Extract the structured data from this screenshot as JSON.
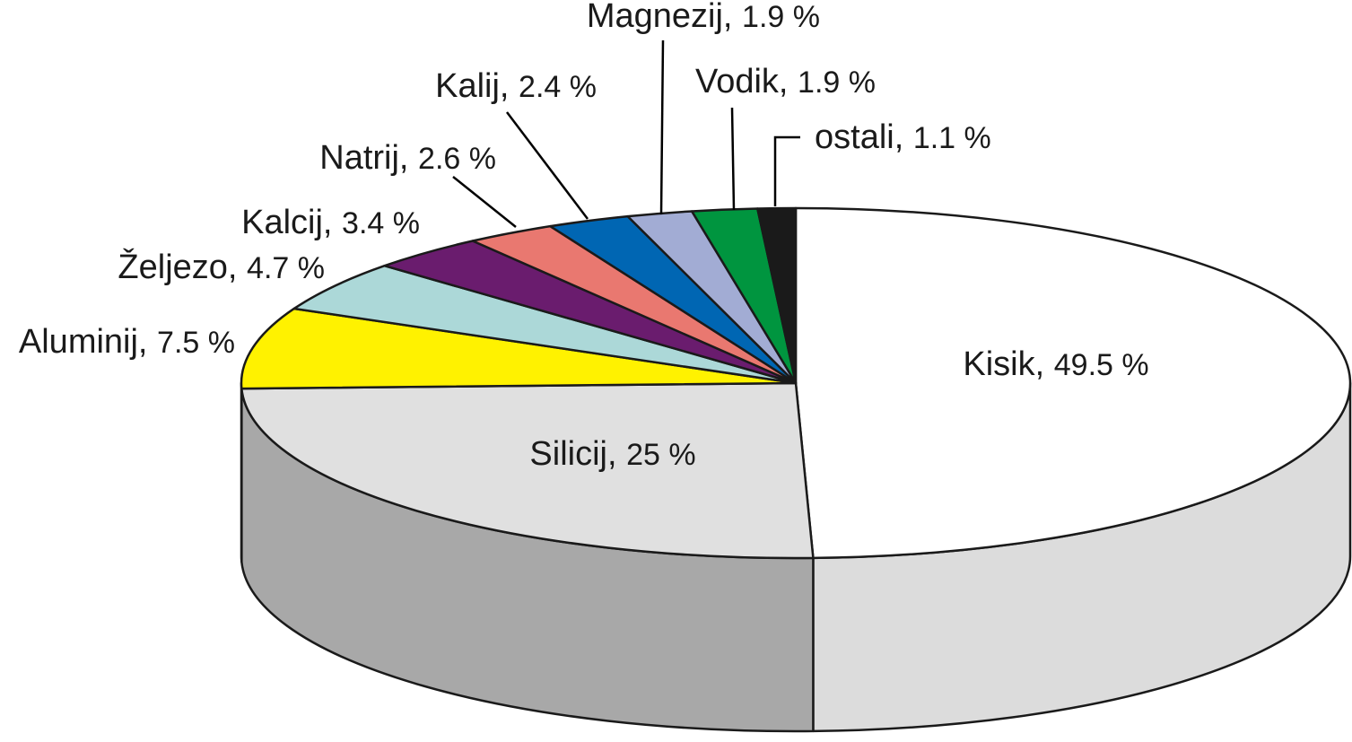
{
  "chart_data": {
    "type": "pie",
    "three_d": true,
    "start_angle_deg": 90,
    "direction": "clockwise",
    "slices": [
      {
        "name": "Kisik",
        "value": 49.5,
        "label": "Kisik, ",
        "pct": "49.5 %",
        "color": "#ffffff",
        "side_color": "#dcdcdc"
      },
      {
        "name": "Silicij",
        "value": 25,
        "label": "Silicij, ",
        "pct": "25 %",
        "color": "#e0e0e0",
        "side_color": "#a8a8a8"
      },
      {
        "name": "Aluminij",
        "value": 7.5,
        "label": "Aluminij, ",
        "pct": "7.5 %",
        "color": "#fff200",
        "side_color": "#a8a8a8"
      },
      {
        "name": "Željezo",
        "value": 4.7,
        "label": "Željezo, ",
        "pct": "4.7 %",
        "color": "#acd8d8",
        "side_color": "#a8a8a8"
      },
      {
        "name": "Kalcij",
        "value": 3.4,
        "label": "Kalcij, ",
        "pct": "3.4 %",
        "color": "#6a1c6e",
        "side_color": "#a8a8a8"
      },
      {
        "name": "Natrij",
        "value": 2.6,
        "label": "Natrij, ",
        "pct": "2.6 %",
        "color": "#e97870",
        "side_color": "#a8a8a8"
      },
      {
        "name": "Kalij",
        "value": 2.4,
        "label": "Kalij, ",
        "pct": "2.4 %",
        "color": "#0066b3",
        "side_color": "#a8a8a8"
      },
      {
        "name": "Magnezij",
        "value": 1.9,
        "label": "Magnezij, ",
        "pct": "1.9 %",
        "color": "#a2acd4",
        "side_color": "#a8a8a8"
      },
      {
        "name": "Vodik",
        "value": 1.9,
        "label": "Vodik, ",
        "pct": "1.9 %",
        "color": "#00953f",
        "side_color": "#a8a8a8"
      },
      {
        "name": "ostali",
        "value": 1.1,
        "label": "ostali, ",
        "pct": "1.1 %",
        "color": "#1a1a1a",
        "side_color": "#a8a8a8"
      }
    ]
  }
}
